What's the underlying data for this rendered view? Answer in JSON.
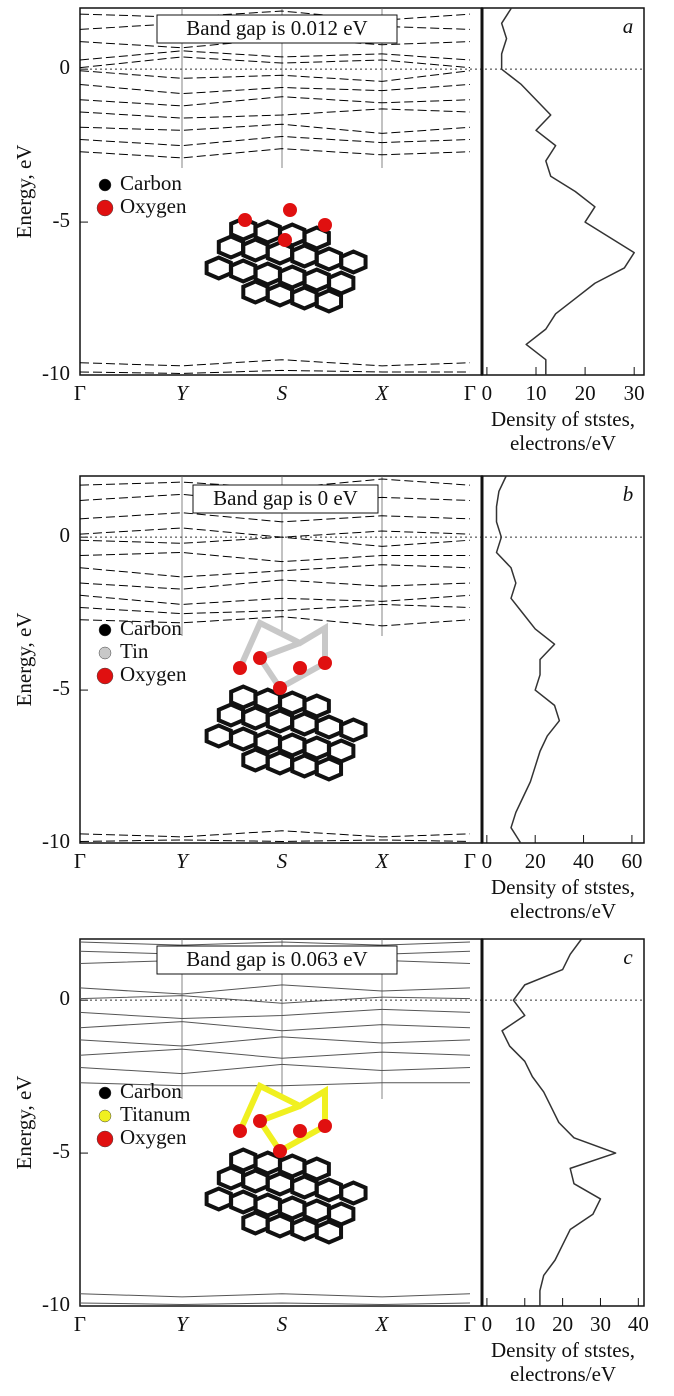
{
  "chart_data": [
    {
      "type": "band",
      "annotation": "Band gap is 0.012 eV",
      "ylabel": "Energy, eV",
      "categories": [
        "Γ",
        "Y",
        "S",
        "X",
        "Γ"
      ],
      "ylim": [
        -10,
        2
      ],
      "yticks": [
        -10,
        -5,
        0
      ],
      "dashed": true,
      "color": "#000000",
      "legend": [
        {
          "name": "Carbon",
          "color": "#000000"
        },
        {
          "name": "Oxygen",
          "color": "#e01010"
        }
      ],
      "bands": [
        [
          1.8,
          1.7,
          1.9,
          1.6,
          1.8
        ],
        [
          1.3,
          1.5,
          1.2,
          1.4,
          1.3
        ],
        [
          0.9,
          0.7,
          1.0,
          0.8,
          0.9
        ],
        [
          0.3,
          0.6,
          0.4,
          0.5,
          0.3
        ],
        [
          0.05,
          0.4,
          0.2,
          0.3,
          0.05
        ],
        [
          -0.05,
          -0.3,
          -0.2,
          -0.4,
          -0.05
        ],
        [
          -0.5,
          -0.8,
          -0.6,
          -0.7,
          -0.5
        ],
        [
          -1.0,
          -1.2,
          -0.9,
          -1.1,
          -1.0
        ],
        [
          -1.4,
          -1.6,
          -1.5,
          -1.3,
          -1.4
        ],
        [
          -1.9,
          -2.0,
          -1.8,
          -2.1,
          -1.9
        ],
        [
          -2.3,
          -2.5,
          -2.2,
          -2.4,
          -2.3
        ],
        [
          -2.7,
          -2.9,
          -2.6,
          -2.8,
          -2.7
        ],
        [
          -9.6,
          -9.7,
          -9.5,
          -9.7,
          -9.6
        ],
        [
          -9.9,
          -9.95,
          -9.85,
          -9.9,
          -9.9
        ]
      ]
    },
    {
      "type": "dos",
      "label": "a",
      "xlabel": [
        "Density of ststes,",
        "electrons/eV"
      ],
      "xlim": [
        -1,
        32
      ],
      "xticks": [
        0,
        10,
        20,
        30
      ],
      "ylim": [
        -10,
        2
      ],
      "color": "#333333",
      "energy": [
        2,
        1.5,
        1,
        0.5,
        0,
        -0.5,
        -1,
        -1.5,
        -2,
        -2.5,
        -3,
        -3.5,
        -4,
        -4.5,
        -5,
        -5.5,
        -6,
        -6.5,
        -7,
        -7.5,
        -8,
        -8.5,
        -9,
        -9.5,
        -10
      ],
      "values": [
        5,
        3,
        4,
        3,
        3,
        7,
        10,
        13,
        10,
        14,
        12,
        13,
        18,
        22,
        20,
        25,
        30,
        28,
        22,
        18,
        14,
        12,
        8,
        12,
        12
      ]
    },
    {
      "type": "band",
      "annotation": "Band gap is 0 eV",
      "ylabel": "Energy, eV",
      "categories": [
        "Γ",
        "Y",
        "S",
        "X",
        "Γ"
      ],
      "ylim": [
        -10,
        2
      ],
      "yticks": [
        -10,
        -5,
        0
      ],
      "dashed": true,
      "color": "#000000",
      "legend": [
        {
          "name": "Carbon",
          "color": "#000000"
        },
        {
          "name": "Tin",
          "color": "#c8c8c8"
        },
        {
          "name": "Oxygen",
          "color": "#e01010"
        }
      ],
      "bands": [
        [
          1.7,
          1.8,
          1.6,
          1.9,
          1.7
        ],
        [
          1.2,
          1.4,
          1.1,
          1.3,
          1.2
        ],
        [
          0.6,
          0.8,
          0.5,
          0.7,
          0.6
        ],
        [
          0.1,
          0.3,
          0.0,
          0.2,
          0.1
        ],
        [
          -0.1,
          -0.2,
          0.0,
          -0.3,
          -0.1
        ],
        [
          -0.6,
          -0.5,
          -0.8,
          -0.6,
          -0.6
        ],
        [
          -1.0,
          -1.3,
          -1.1,
          -0.9,
          -1.0
        ],
        [
          -1.5,
          -1.7,
          -1.4,
          -1.6,
          -1.5
        ],
        [
          -1.9,
          -2.2,
          -2.0,
          -2.1,
          -1.9
        ],
        [
          -2.3,
          -2.5,
          -2.4,
          -2.2,
          -2.3
        ],
        [
          -2.7,
          -2.8,
          -2.6,
          -2.9,
          -2.7
        ],
        [
          -9.7,
          -9.8,
          -9.6,
          -9.8,
          -9.7
        ],
        [
          -9.95,
          -9.9,
          -9.95,
          -9.9,
          -9.95
        ]
      ]
    },
    {
      "type": "dos",
      "label": "b",
      "xlabel": [
        "Density of ststes,",
        "electrons/eV"
      ],
      "xlim": [
        -2,
        65
      ],
      "xticks": [
        0,
        20,
        40,
        60
      ],
      "ylim": [
        -10,
        2
      ],
      "color": "#333333",
      "energy": [
        2,
        1.5,
        1,
        0.5,
        0,
        -0.5,
        -1,
        -1.5,
        -2,
        -2.5,
        -3,
        -3.5,
        -4,
        -4.5,
        -5,
        -5.5,
        -6,
        -6.5,
        -7,
        -7.5,
        -8,
        -8.5,
        -9,
        -9.5,
        -10
      ],
      "values": [
        8,
        5,
        4,
        4,
        6,
        4,
        10,
        12,
        10,
        15,
        20,
        28,
        22,
        22,
        20,
        28,
        30,
        25,
        22,
        20,
        18,
        15,
        12,
        10,
        14
      ]
    },
    {
      "type": "band",
      "annotation": "Band gap is 0.063 eV",
      "ylabel": "Energy, eV",
      "categories": [
        "Γ",
        "Y",
        "S",
        "X",
        "Γ"
      ],
      "ylim": [
        -10,
        2
      ],
      "yticks": [
        -10,
        -5,
        0
      ],
      "dashed": false,
      "color": "#555555",
      "legend": [
        {
          "name": "Carbon",
          "color": "#000000"
        },
        {
          "name": "Titanum",
          "color": "#f0f020"
        },
        {
          "name": "Oxygen",
          "color": "#e01010"
        }
      ],
      "bands": [
        [
          1.9,
          1.8,
          1.9,
          1.8,
          1.9
        ],
        [
          1.6,
          1.5,
          1.7,
          1.5,
          1.6
        ],
        [
          1.2,
          1.3,
          1.1,
          1.3,
          1.2
        ],
        [
          0.4,
          0.2,
          0.5,
          0.3,
          0.4
        ],
        [
          0.05,
          0.15,
          -0.1,
          0.1,
          0.05
        ],
        [
          -0.4,
          -0.6,
          -0.5,
          -0.3,
          -0.4
        ],
        [
          -0.9,
          -0.7,
          -1.0,
          -0.8,
          -0.9
        ],
        [
          -1.3,
          -1.5,
          -1.2,
          -1.4,
          -1.3
        ],
        [
          -1.8,
          -1.6,
          -1.9,
          -1.7,
          -1.8
        ],
        [
          -2.2,
          -2.4,
          -2.1,
          -2.3,
          -2.2
        ],
        [
          -2.7,
          -2.8,
          -2.8,
          -2.7,
          -2.7
        ],
        [
          -9.6,
          -9.7,
          -9.6,
          -9.7,
          -9.6
        ],
        [
          -9.9,
          -9.95,
          -9.9,
          -9.95,
          -9.9
        ]
      ]
    },
    {
      "type": "dos",
      "label": "c",
      "xlabel": [
        "Density of ststes,",
        "electrons/eV"
      ],
      "xlim": [
        -1.3,
        41.5
      ],
      "xticks": [
        0,
        10,
        20,
        30,
        40
      ],
      "ylim": [
        -10,
        2
      ],
      "color": "#333333",
      "energy": [
        2,
        1.5,
        1,
        0.5,
        0,
        -0.5,
        -1,
        -1.5,
        -2,
        -2.5,
        -3,
        -3.5,
        -4,
        -4.5,
        -5,
        -5.5,
        -6,
        -6.5,
        -7,
        -7.5,
        -8,
        -8.5,
        -9,
        -9.5,
        -10
      ],
      "values": [
        25,
        22,
        20,
        10,
        7,
        10,
        4,
        6,
        10,
        12,
        15,
        17,
        19,
        23,
        34,
        22,
        23,
        30,
        28,
        22,
        20,
        18,
        15,
        14,
        14
      ]
    }
  ]
}
